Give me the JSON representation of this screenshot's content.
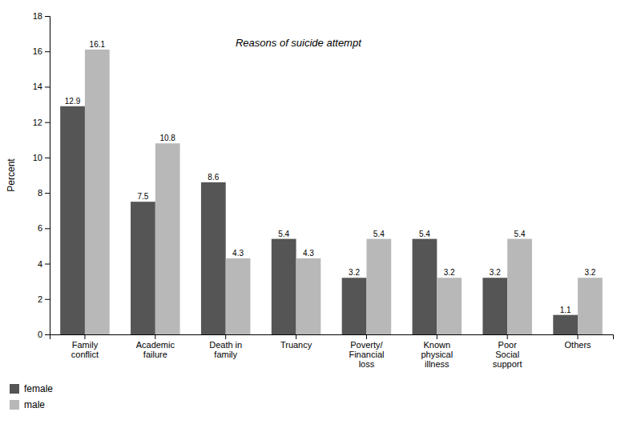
{
  "chart_data": {
    "type": "bar",
    "categories": [
      "Family\nconflict",
      "Academic\nfailure",
      "Death in\nfamily",
      "Truancy",
      "Poverty/\nFinancial\nloss",
      "Known\nphysical\nillness",
      "Poor\nSocial\nsupport",
      "Others"
    ],
    "series": [
      {
        "name": "female",
        "color": "#555555",
        "values": [
          12.9,
          7.5,
          8.6,
          5.4,
          3.2,
          5.4,
          3.2,
          1.1
        ]
      },
      {
        "name": "male",
        "color": "#b8b8b8",
        "values": [
          16.1,
          10.8,
          4.3,
          4.3,
          5.4,
          3.2,
          5.4,
          3.2
        ]
      }
    ],
    "ylabel": "Percent",
    "annotation": "Reasons of suicide attempt",
    "ylim": [
      0,
      18
    ],
    "yticks": [
      0,
      2,
      4,
      6,
      8,
      10,
      12,
      14,
      16,
      18
    ],
    "grid": false,
    "legend": "lower left",
    "data_labels": true
  }
}
